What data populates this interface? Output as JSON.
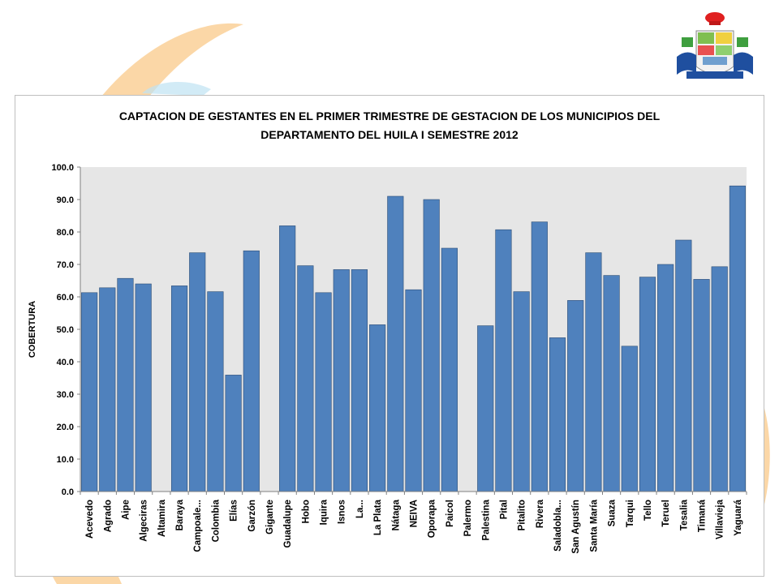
{
  "chart_data": {
    "type": "bar",
    "title": "CAPTACION DE GESTANTES EN EL PRIMER TRIMESTRE DE GESTACION DE LOS MUNICIPIOS DEL DEPARTAMENTO DEL HUILA I SEMESTRE 2012",
    "title_lines": [
      "CAPTACION DE GESTANTES EN EL PRIMER TRIMESTRE DE GESTACION DE LOS MUNICIPIOS DEL",
      "DEPARTAMENTO DEL HUILA I SEMESTRE 2012"
    ],
    "xlabel": "",
    "ylabel": "COBERTURA",
    "ylim": [
      0,
      100
    ],
    "yticks": [
      "0.0",
      "10.0",
      "20.0",
      "30.0",
      "40.0",
      "50.0",
      "60.0",
      "70.0",
      "80.0",
      "90.0",
      "100.0"
    ],
    "grid": false,
    "legend": "none",
    "bar_color": "#4f81bd",
    "bar_edge_color": "#2c4d75",
    "plot_bg_color": "#e6e6e6",
    "categories": [
      "Acevedo",
      "Agrado",
      "Aipe",
      "Algeciras",
      "Altamira",
      "Baraya",
      "Campoale...",
      "Colombia",
      "Elías",
      "Garzón",
      "Gigante",
      "Guadalupe",
      "Hobo",
      "Iquira",
      "Isnos",
      "La...",
      "La Plata",
      "Nátaga",
      "NEIVA",
      "Oporapa",
      "Paicol",
      "Palermo",
      "Palestina",
      "Pital",
      "Pitalito",
      "Rivera",
      "Saladobla...",
      "San Agustín",
      "Santa María",
      "Suaza",
      "Tarqui",
      "Tello",
      "Teruel",
      "Tesalia",
      "Timaná",
      "Villavieja",
      "Yaguará"
    ],
    "values": [
      61.3,
      62.8,
      65.7,
      64.0,
      0,
      63.4,
      73.6,
      61.6,
      35.9,
      74.2,
      0,
      81.9,
      69.6,
      61.3,
      68.4,
      68.4,
      51.4,
      91.0,
      62.2,
      90.0,
      75.0,
      0,
      51.1,
      80.7,
      61.6,
      83.1,
      47.4,
      58.9,
      73.6,
      66.6,
      44.8,
      66.1,
      70.0,
      77.5,
      65.4,
      69.3,
      94.2
    ]
  }
}
